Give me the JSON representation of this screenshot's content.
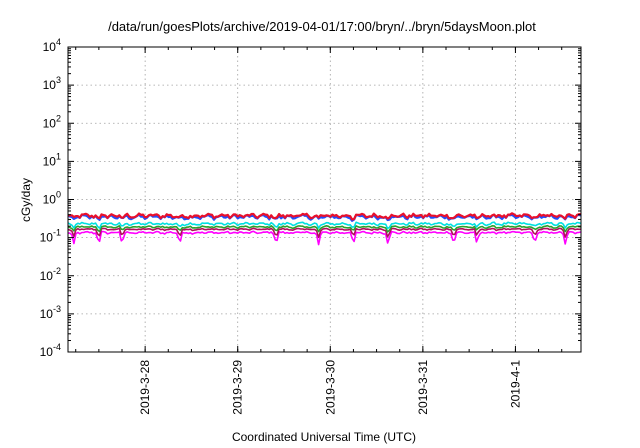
{
  "chart_data": {
    "type": "line",
    "title": "/data/run/goesPlots/archive/2019-04-01/17:00/bryn/../bryn/5daysMoon.plot",
    "xlabel": "Coordinated Universal Time (UTC)",
    "ylabel": "cGy/day",
    "yscale": "log",
    "ylim": [
      0.0001,
      10000
    ],
    "y_ticks": [
      {
        "value": 0.0001,
        "base": "10",
        "exp": "-4"
      },
      {
        "value": 0.001,
        "base": "10",
        "exp": "-3"
      },
      {
        "value": 0.01,
        "base": "10",
        "exp": "-2"
      },
      {
        "value": 0.1,
        "base": "10",
        "exp": "-1"
      },
      {
        "value": 1,
        "base": "10",
        "exp": "0"
      },
      {
        "value": 10,
        "base": "10",
        "exp": "1"
      },
      {
        "value": 100,
        "base": "10",
        "exp": "2"
      },
      {
        "value": 1000,
        "base": "10",
        "exp": "3"
      },
      {
        "value": 10000,
        "base": "10",
        "exp": "4"
      }
    ],
    "xlim": [
      "2019-03-27T04:00",
      "2019-04-01T17:00"
    ],
    "x_ticks": [
      {
        "value": "2019-03-28T00:00",
        "label": "2019-3-28"
      },
      {
        "value": "2019-03-29T00:00",
        "label": "2019-3-29"
      },
      {
        "value": "2019-03-30T00:00",
        "label": "2019-3-30"
      },
      {
        "value": "2019-03-31T00:00",
        "label": "2019-3-31"
      },
      {
        "value": "2019-04-01T00:00",
        "label": "2019-4-1"
      }
    ],
    "grid": true,
    "series": [
      {
        "color": "#e8102c",
        "values_range": [
          0.3,
          0.45
        ]
      },
      {
        "color": "#1f4fff",
        "values_range": [
          0.28,
          0.42
        ]
      },
      {
        "color": "#00e0e0",
        "values_range": [
          0.2,
          0.26
        ]
      },
      {
        "color": "#2ca02c",
        "values_range": [
          0.17,
          0.21
        ]
      },
      {
        "color": "#b0105a",
        "values_range": [
          0.15,
          0.18
        ]
      },
      {
        "color": "#ff00ff",
        "values_range": [
          0.12,
          0.15
        ]
      }
    ],
    "dips": [
      "2019-03-27T05:30",
      "2019-03-27T12:00",
      "2019-03-27T18:00",
      "2019-03-28T09:00",
      "2019-03-29T10:00",
      "2019-03-29T21:00",
      "2019-03-30T06:00",
      "2019-03-30T15:00",
      "2019-03-31T08:00",
      "2019-03-31T14:00",
      "2019-04-01T05:00",
      "2019-04-01T13:00"
    ]
  }
}
